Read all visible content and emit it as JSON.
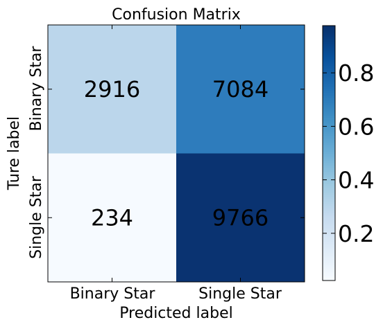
{
  "chart_data": {
    "type": "heatmap",
    "title": "Confusion Matrix",
    "xlabel": "Predicted label",
    "ylabel": "Ture label",
    "x_categories": [
      "Binary Star",
      "Single Star"
    ],
    "y_categories": [
      "Binary Star",
      "Single Star"
    ],
    "values": [
      [
        2916,
        7084
      ],
      [
        234,
        9766
      ]
    ],
    "normalized": [
      [
        0.2916,
        0.7084
      ],
      [
        0.0234,
        0.9766
      ]
    ],
    "cell_colors": [
      [
        "#bbd6eb",
        "#2e7cbc"
      ],
      [
        "#f6faff",
        "#0a3371"
      ]
    ],
    "colorbar": {
      "ticks": [
        "0.2",
        "0.4",
        "0.6",
        "0.8"
      ],
      "tick_values": [
        0.2,
        0.4,
        0.6,
        0.8
      ],
      "range": [
        0.0234,
        0.9766
      ],
      "colormap": "Blues"
    }
  }
}
